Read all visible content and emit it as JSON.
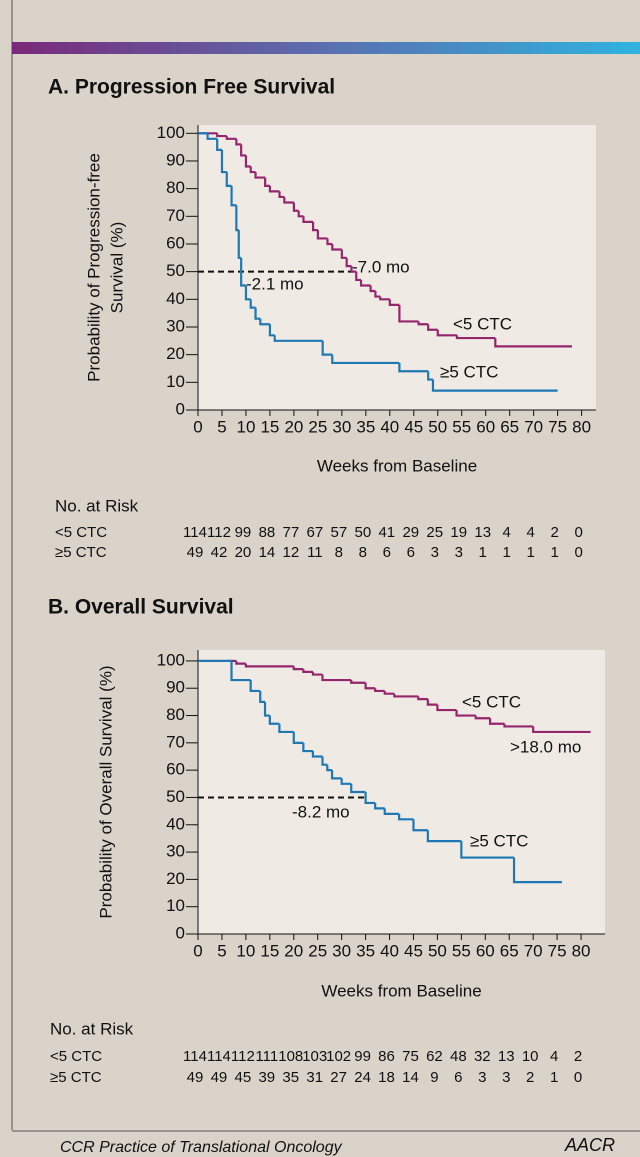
{
  "chart_data": [
    {
      "type": "line",
      "step": true,
      "title": "A. Progression Free Survival",
      "xlabel": "Weeks from Baseline",
      "ylabel": [
        "Probability of Progression-free",
        "Survival (%)"
      ],
      "xlim": [
        0,
        83
      ],
      "xticks": [
        0,
        5,
        10,
        15,
        20,
        25,
        30,
        35,
        40,
        45,
        50,
        55,
        60,
        65,
        70,
        75,
        80
      ],
      "ylim": [
        0,
        103
      ],
      "yticks": [
        0,
        10,
        20,
        30,
        40,
        50,
        60,
        70,
        80,
        90,
        100
      ],
      "reference": {
        "y": 50,
        "x": [
          0,
          32
        ]
      },
      "annotations": [
        "-7.0 mo",
        "-2.1 mo"
      ],
      "series": [
        {
          "name": "<5 CTC",
          "color": "#95266e",
          "x": [
            0,
            4,
            6,
            8,
            9,
            10,
            11,
            12,
            14,
            15,
            17,
            18,
            20,
            21,
            22,
            24,
            25,
            27,
            28,
            30,
            31,
            32,
            33,
            34,
            36,
            37,
            38,
            40,
            42,
            46,
            48,
            50,
            54,
            62,
            78
          ],
          "values": [
            100,
            99,
            98,
            96,
            92,
            88,
            86,
            84,
            81,
            79,
            77,
            75,
            72,
            70,
            68,
            65,
            62,
            60,
            58,
            55,
            52,
            50,
            47,
            45,
            43,
            41,
            40,
            38,
            32,
            31,
            29,
            27,
            26,
            23,
            23
          ]
        },
        {
          "name": "≥5 CTC",
          "color": "#1f78b4",
          "x": [
            0,
            2,
            4,
            5,
            6,
            7,
            8,
            8.5,
            9,
            10,
            11,
            12,
            13,
            15,
            16,
            26,
            28,
            42,
            48,
            49,
            75
          ],
          "values": [
            100,
            98,
            94,
            86,
            81,
            74,
            65,
            55,
            45,
            40,
            37,
            33,
            31,
            27,
            25,
            20,
            17,
            14,
            11,
            7,
            7
          ]
        }
      ],
      "risk_table": {
        "title": "No. at Risk",
        "rows": [
          {
            "label": "<5 CTC",
            "values": [
              114,
              112,
              99,
              88,
              77,
              67,
              57,
              50,
              41,
              29,
              25,
              19,
              13,
              4,
              4,
              2,
              0
            ]
          },
          {
            "label": "≥5 CTC",
            "values": [
              49,
              42,
              20,
              14,
              12,
              11,
              8,
              8,
              6,
              6,
              3,
              3,
              1,
              1,
              1,
              1,
              0
            ]
          }
        ]
      }
    },
    {
      "type": "line",
      "step": true,
      "title": "B. Overall Survival",
      "xlabel": "Weeks from Baseline",
      "ylabel": [
        "Probability of Overall Survival (%)"
      ],
      "xlim": [
        0,
        85
      ],
      "xticks": [
        0,
        5,
        10,
        15,
        20,
        25,
        30,
        35,
        40,
        45,
        50,
        55,
        60,
        65,
        70,
        75,
        80
      ],
      "ylim": [
        0,
        104
      ],
      "yticks": [
        0,
        10,
        20,
        30,
        40,
        50,
        60,
        70,
        80,
        90,
        100
      ],
      "reference": {
        "y": 50,
        "x": [
          0,
          35
        ]
      },
      "annotations": [
        ">18.0 mo",
        "-8.2 mo"
      ],
      "series": [
        {
          "name": "<5 CTC",
          "color": "#95266e",
          "x": [
            0,
            6,
            8,
            10,
            20,
            22,
            24,
            26,
            32,
            35,
            37,
            39,
            41,
            46,
            48,
            50,
            54,
            58,
            61,
            64,
            70,
            82
          ],
          "values": [
            100,
            100,
            99,
            98,
            97,
            96,
            95,
            93,
            92,
            90,
            89,
            88,
            87,
            86,
            84,
            82,
            80,
            79,
            77,
            76,
            74,
            74
          ]
        },
        {
          "name": "≥5 CTC",
          "color": "#1f78b4",
          "x": [
            0,
            7,
            11,
            13,
            14,
            15,
            17,
            20,
            22,
            24,
            26,
            27,
            28,
            30,
            32,
            35,
            37,
            39,
            42,
            45,
            48,
            55,
            66,
            76
          ],
          "values": [
            100,
            93,
            89,
            85,
            80,
            77,
            74,
            70,
            67,
            65,
            62,
            60,
            57,
            55,
            52,
            48,
            46,
            44,
            42,
            38,
            34,
            28,
            19,
            19
          ]
        }
      ],
      "risk_table": {
        "title": "No. at Risk",
        "rows": [
          {
            "label": "<5 CTC",
            "values": [
              114,
              114,
              112,
              111,
              108,
              103,
              102,
              99,
              86,
              75,
              62,
              48,
              32,
              13,
              10,
              4,
              2
            ]
          },
          {
            "label": "≥5 CTC",
            "values": [
              49,
              49,
              45,
              39,
              35,
              31,
              27,
              24,
              18,
              14,
              9,
              6,
              3,
              3,
              2,
              1,
              0
            ]
          }
        ]
      }
    }
  ],
  "footer": "CCR Practice of Translational Oncology",
  "logo": "AACR"
}
